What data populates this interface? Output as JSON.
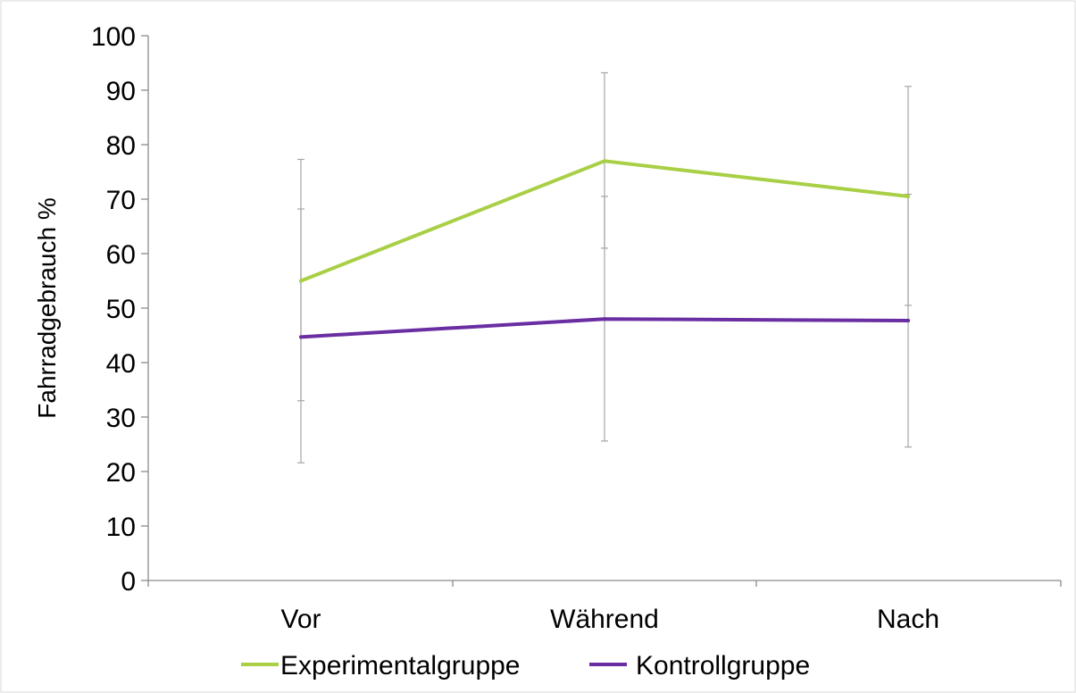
{
  "chart_data": {
    "type": "line",
    "categories": [
      "Vor",
      "Während",
      "Nach"
    ],
    "ylabel": "Fahrradgebrauch %",
    "xlabel": "",
    "ylim": [
      0,
      100
    ],
    "yticks": [
      0,
      10,
      20,
      30,
      40,
      50,
      60,
      70,
      80,
      90,
      100
    ],
    "grid": false,
    "legend_position": "bottom",
    "series": [
      {
        "name": "Experimentalgruppe",
        "color": "#a8cf45",
        "values": [
          55,
          77,
          70.5
        ],
        "error_low": [
          33,
          61,
          50.5
        ],
        "error_high": [
          77.3,
          93.2,
          90.7
        ]
      },
      {
        "name": "Kontrollgruppe",
        "color": "#6a2ea3",
        "values": [
          44.7,
          48,
          47.7
        ],
        "error_low": [
          21.6,
          25.6,
          24.5
        ],
        "error_high": [
          68.2,
          70.5,
          70.9
        ]
      }
    ]
  }
}
